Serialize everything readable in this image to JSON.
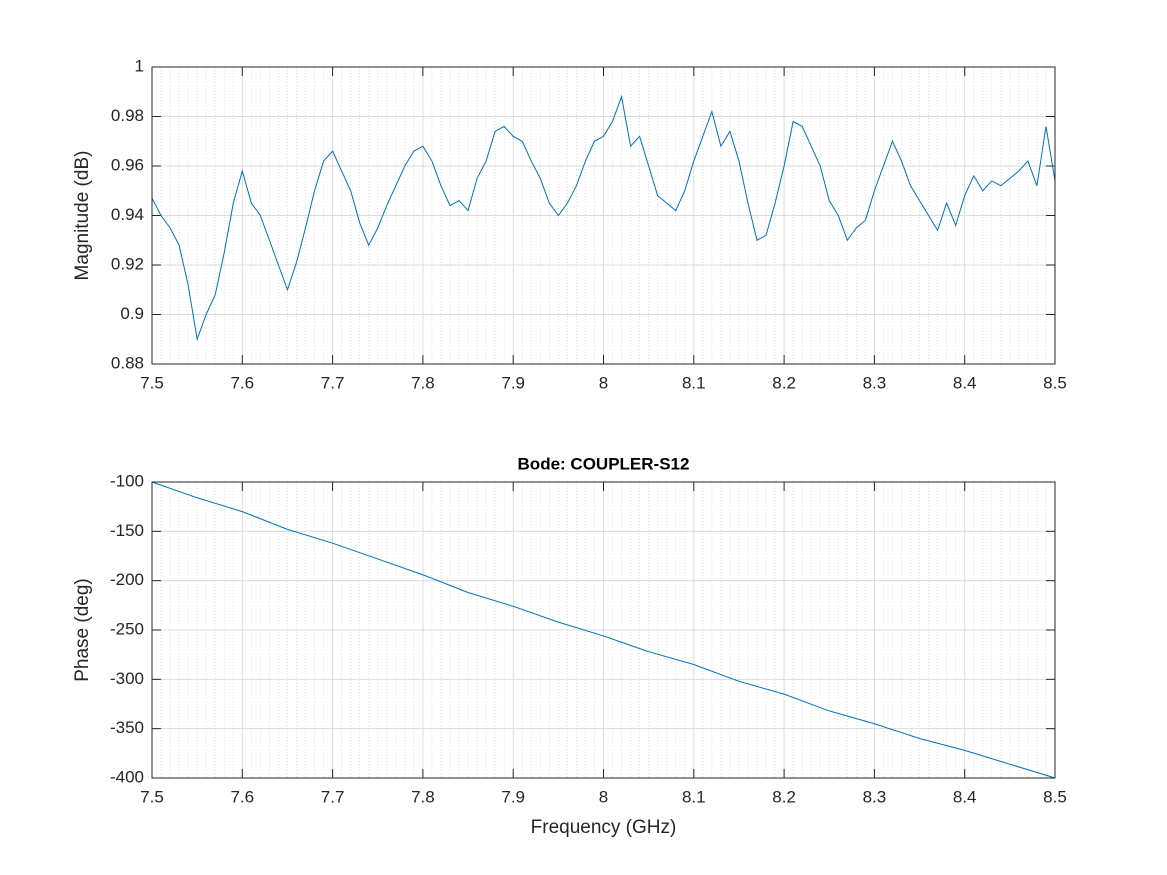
{
  "chart_data": [
    {
      "type": "line",
      "ylabel": "Magnitude (dB)",
      "x": [
        7.5,
        7.51,
        7.52,
        7.53,
        7.54,
        7.55,
        7.56,
        7.57,
        7.58,
        7.59,
        7.6,
        7.61,
        7.62,
        7.63,
        7.64,
        7.65,
        7.66,
        7.67,
        7.68,
        7.69,
        7.7,
        7.71,
        7.72,
        7.73,
        7.74,
        7.75,
        7.76,
        7.77,
        7.78,
        7.79,
        7.8,
        7.81,
        7.82,
        7.83,
        7.84,
        7.85,
        7.86,
        7.87,
        7.88,
        7.89,
        7.9,
        7.91,
        7.92,
        7.93,
        7.94,
        7.95,
        7.96,
        7.97,
        7.98,
        7.99,
        8.0,
        8.01,
        8.02,
        8.03,
        8.04,
        8.05,
        8.06,
        8.07,
        8.08,
        8.09,
        8.1,
        8.11,
        8.12,
        8.13,
        8.14,
        8.15,
        8.16,
        8.17,
        8.18,
        8.19,
        8.2,
        8.21,
        8.22,
        8.23,
        8.24,
        8.25,
        8.26,
        8.27,
        8.28,
        8.29,
        8.3,
        8.31,
        8.32,
        8.33,
        8.34,
        8.35,
        8.36,
        8.37,
        8.38,
        8.39,
        8.4,
        8.41,
        8.42,
        8.43,
        8.44,
        8.45,
        8.46,
        8.47,
        8.48,
        8.49,
        8.5
      ],
      "series": [
        {
          "color": "#0072bd",
          "values": [
            0.947,
            0.94,
            0.935,
            0.928,
            0.912,
            0.89,
            0.9,
            0.908,
            0.925,
            0.945,
            0.958,
            0.945,
            0.94,
            0.93,
            0.92,
            0.91,
            0.921,
            0.935,
            0.95,
            0.962,
            0.966,
            0.958,
            0.95,
            0.937,
            0.928,
            0.935,
            0.944,
            0.952,
            0.96,
            0.966,
            0.968,
            0.962,
            0.952,
            0.944,
            0.946,
            0.942,
            0.955,
            0.962,
            0.974,
            0.976,
            0.972,
            0.97,
            0.962,
            0.955,
            0.945,
            0.94,
            0.945,
            0.952,
            0.962,
            0.97,
            0.972,
            0.978,
            0.988,
            0.968,
            0.972,
            0.96,
            0.948,
            0.945,
            0.942,
            0.95,
            0.962,
            0.972,
            0.982,
            0.968,
            0.974,
            0.962,
            0.945,
            0.93,
            0.932,
            0.945,
            0.96,
            0.978,
            0.976,
            0.968,
            0.96,
            0.946,
            0.94,
            0.93,
            0.935,
            0.938,
            0.95,
            0.96,
            0.97,
            0.962,
            0.952,
            0.946,
            0.94,
            0.934,
            0.945,
            0.936,
            0.948,
            0.956,
            0.95,
            0.954,
            0.952,
            0.955,
            0.958,
            0.962,
            0.952,
            0.976,
            0.954
          ]
        }
      ],
      "xlim": [
        7.5,
        8.5
      ],
      "xticks": [
        7.5,
        7.6,
        7.7,
        7.8,
        7.9,
        8,
        8.1,
        8.2,
        8.3,
        8.4,
        8.5
      ],
      "ylim": [
        0.88,
        1
      ],
      "yticks": [
        0.88,
        0.9,
        0.92,
        0.94,
        0.96,
        0.98,
        1
      ],
      "grid": true
    },
    {
      "type": "line",
      "title": "Bode: COUPLER-S12",
      "xlabel": "Frequency (GHz)",
      "ylabel": "Phase (deg)",
      "x": [
        7.5,
        7.55,
        7.6,
        7.65,
        7.7,
        7.75,
        7.8,
        7.85,
        7.9,
        7.95,
        8.0,
        8.05,
        8.1,
        8.15,
        8.2,
        8.25,
        8.3,
        8.35,
        8.4,
        8.45,
        8.5
      ],
      "series": [
        {
          "color": "#0072bd",
          "values": [
            -100,
            -116,
            -130,
            -148,
            -162,
            -178,
            -194,
            -212,
            -226,
            -242,
            -256,
            -272,
            -285,
            -302,
            -315,
            -332,
            -345,
            -360,
            -372,
            -386,
            -400
          ]
        }
      ],
      "xlim": [
        7.5,
        8.5
      ],
      "xticks": [
        7.5,
        7.6,
        7.7,
        7.8,
        7.9,
        8,
        8.1,
        8.2,
        8.3,
        8.4,
        8.5
      ],
      "ylim": [
        -400,
        -100
      ],
      "yticks": [
        -400,
        -350,
        -300,
        -250,
        -200,
        -150,
        -100
      ],
      "grid": true
    }
  ]
}
